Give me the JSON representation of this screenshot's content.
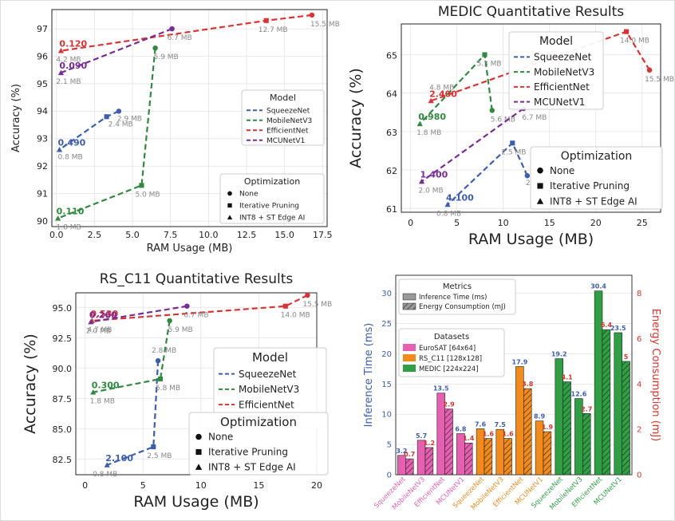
{
  "colors": {
    "SqueezeNet": "#3b5eb5",
    "MobileNetV3": "#2e8b3e",
    "EfficientNet": "#e03131",
    "MCUNetV1": "#7b2a9a",
    "EuroSAT": "#e75fb0",
    "RS_C11": "#f28b1a",
    "MEDIC": "#2ea043",
    "energy_axis": "#d9342b",
    "time_axis": "#3b5eb5"
  },
  "legend_titles": {
    "model": "Model",
    "optimization": "Optimization",
    "metrics": "Metrics",
    "datasets": "Datasets"
  },
  "model_names": [
    "SqueezeNet",
    "MobileNetV3",
    "EfficientNet",
    "MCUNetV1"
  ],
  "optimization_names": [
    "None",
    "Iterative Pruning",
    "INT8 + ST Edge AI"
  ],
  "metric_names": [
    "Inference Time (ms)",
    "Energy Consumption (mJ)"
  ],
  "dataset_names": [
    "EuroSAT [64x64]",
    "RS_C11 [128x128]",
    "MEDIC [224x224]"
  ],
  "chart_data": [
    {
      "type": "scatter",
      "title": "",
      "xlabel": "RAM Usage (MB)",
      "ylabel": "Accuracy (%)",
      "xlim": [
        -0.3,
        17.8
      ],
      "ylim": [
        89.8,
        97.7
      ],
      "xticks": [
        0.0,
        2.5,
        5.0,
        7.5,
        10.0,
        12.5,
        15.0,
        17.5
      ],
      "yticks": [
        90,
        91,
        92,
        93,
        94,
        95,
        96,
        97
      ],
      "grid": true,
      "legend_position": "right",
      "series": [
        {
          "name": "SqueezeNet",
          "points": [
            {
              "x": 4.1,
              "y": 94.0,
              "opt": "None",
              "size": "2.9 MB"
            },
            {
              "x": 3.3,
              "y": 93.8,
              "opt": "Iterative Pruning",
              "size": "2.4 MB"
            },
            {
              "x": 0.2,
              "y": 92.6,
              "opt": "INT8 + ST Edge AI",
              "size": "0.8 MB"
            }
          ],
          "reduction": "0.490"
        },
        {
          "name": "MobileNetV3",
          "points": [
            {
              "x": 6.5,
              "y": 96.3,
              "opt": "None",
              "size": "5.9 MB"
            },
            {
              "x": 5.6,
              "y": 91.3,
              "opt": "Iterative Pruning",
              "size": "5.0 MB"
            },
            {
              "x": 0.1,
              "y": 90.1,
              "opt": "INT8 + ST Edge AI",
              "size": "1.8 MB"
            }
          ],
          "reduction": "0.110"
        },
        {
          "name": "EfficientNet",
          "points": [
            {
              "x": 16.8,
              "y": 97.5,
              "opt": "None",
              "size": "15.5 MB"
            },
            {
              "x": 13.8,
              "y": 97.3,
              "opt": "Iterative Pruning",
              "size": "12.7 MB"
            },
            {
              "x": 0.3,
              "y": 96.2,
              "opt": "INT8 + ST Edge AI",
              "size": "4.2 MB"
            }
          ],
          "reduction": "0.120"
        },
        {
          "name": "MCUNetV1",
          "points": [
            {
              "x": 7.6,
              "y": 97.0,
              "opt": "None",
              "size": "6.7 MB"
            },
            {
              "x": 0.3,
              "y": 95.4,
              "opt": "INT8 + ST Edge AI",
              "size": "2.1 MB"
            }
          ],
          "reduction": "0.090"
        }
      ]
    },
    {
      "type": "scatter",
      "title": "MEDIC Quantitative Results",
      "xlabel": "RAM Usage (MB)",
      "ylabel": "Accuracy (%)",
      "xlim": [
        -1,
        27
      ],
      "ylim": [
        60.9,
        65.8
      ],
      "xticks": [
        0,
        5,
        10,
        15,
        20,
        25
      ],
      "yticks": [
        61,
        62,
        63,
        64,
        65
      ],
      "grid": true,
      "legend_position": "top-right",
      "series": [
        {
          "name": "SqueezeNet",
          "points": [
            {
              "x": 12.6,
              "y": 61.85,
              "opt": "None",
              "size": "2.8 MB"
            },
            {
              "x": 11.0,
              "y": 62.7,
              "opt": "Iterative Pruning",
              "size": "2.5 MB"
            },
            {
              "x": 4.0,
              "y": 61.1,
              "opt": "INT8 + ST Edge AI",
              "size": "0.8 MB"
            }
          ],
          "reduction": "4.100"
        },
        {
          "name": "MobileNetV3",
          "points": [
            {
              "x": 8.8,
              "y": 63.55,
              "opt": "None",
              "size": "5.6 MB"
            },
            {
              "x": 8.0,
              "y": 65.0,
              "opt": "Iterative Pruning",
              "size": "5.3 MB"
            },
            {
              "x": 1.0,
              "y": 63.2,
              "opt": "INT8 + ST Edge AI",
              "size": "1.8 MB"
            }
          ],
          "reduction": "0.980"
        },
        {
          "name": "EfficientNet",
          "points": [
            {
              "x": 25.8,
              "y": 64.6,
              "opt": "None",
              "size": "15.5 MB"
            },
            {
              "x": 23.3,
              "y": 65.6,
              "opt": "Iterative Pruning",
              "size": "14.0 MB"
            },
            {
              "x": 2.2,
              "y": 63.8,
              "opt": "INT8 + ST Edge AI",
              "size": "4.8 MB"
            }
          ],
          "reduction": "2.400"
        },
        {
          "name": "MCUNetV1",
          "points": [
            {
              "x": 12.2,
              "y": 63.6,
              "opt": "None",
              "size": "6.7 MB"
            },
            {
              "x": 1.2,
              "y": 61.7,
              "opt": "INT8 + ST Edge AI",
              "size": "2.0 MB"
            }
          ],
          "reduction": "1.400"
        }
      ]
    },
    {
      "type": "scatter",
      "title": "RS_C11 Quantitative Results",
      "xlabel": "RAM Usage (MB)",
      "ylabel": "Accuracy (%)",
      "xlim": [
        -0.8,
        20
      ],
      "ylim": [
        81.2,
        96.2
      ],
      "xticks": [
        0,
        5,
        10,
        15,
        20
      ],
      "yticks": [
        82.5,
        85.0,
        87.5,
        90.0,
        92.5,
        95.0
      ],
      "grid": true,
      "legend_position": "right",
      "series": [
        {
          "name": "SqueezeNet",
          "points": [
            {
              "x": 6.3,
              "y": 90.6,
              "opt": "None",
              "size": "2.8 MB"
            },
            {
              "x": 5.9,
              "y": 83.5,
              "opt": "Iterative Pruning",
              "size": "2.5 MB"
            },
            {
              "x": 1.9,
              "y": 82.0,
              "opt": "INT8 + ST Edge AI",
              "size": "0.8 MB"
            }
          ],
          "reduction": "2.100"
        },
        {
          "name": "MobileNetV3",
          "points": [
            {
              "x": 7.3,
              "y": 93.9,
              "opt": "None",
              "size": "5.9 MB"
            },
            {
              "x": 6.5,
              "y": 89.1,
              "opt": "Iterative Pruning",
              "size": "5.8 MB"
            },
            {
              "x": 0.7,
              "y": 88.0,
              "opt": "INT8 + ST Edge AI",
              "size": "1.8 MB"
            }
          ],
          "reduction": "0.300"
        },
        {
          "name": "EfficientNet",
          "points": [
            {
              "x": 19.2,
              "y": 96.0,
              "opt": "None",
              "size": "15.5 MB"
            },
            {
              "x": 17.3,
              "y": 95.1,
              "opt": "Iterative Pruning",
              "size": "14.0 MB"
            },
            {
              "x": 0.6,
              "y": 93.9,
              "opt": "INT8 + ST Edge AI",
              "size": "4.7 MB"
            }
          ],
          "reduction": "0.530"
        },
        {
          "name": "MCUNetV1",
          "points": [
            {
              "x": 8.8,
              "y": 95.1,
              "opt": "None",
              "size": "6.7 MB"
            },
            {
              "x": 0.5,
              "y": 93.8,
              "opt": "INT8 + ST Edge AI",
              "size": "2.0 MB"
            }
          ],
          "reduction": "0.260"
        }
      ]
    },
    {
      "type": "bar",
      "title": "",
      "ylabel": "Inference Time (ms)",
      "y2label": "Energy Consumption (mJ)",
      "ylim": [
        0,
        33
      ],
      "y2lim": [
        0,
        8.8
      ],
      "yticks": [
        0,
        5,
        10,
        15,
        20,
        25,
        30
      ],
      "y2ticks": [
        0,
        2,
        4,
        6,
        8
      ],
      "grid": true,
      "categories": [
        "SqueezeNet",
        "MobileNetV3",
        "EfficientNet",
        "MCUNetV1",
        "SqueezeNet",
        "MobileNetV3",
        "EfficientNet",
        "MCUNetV1",
        "SqueezeNet",
        "MobileNetV3",
        "EfficientNet",
        "MCUNetV1"
      ],
      "category_dataset": [
        "EuroSAT",
        "EuroSAT",
        "EuroSAT",
        "EuroSAT",
        "RS_C11",
        "RS_C11",
        "RS_C11",
        "RS_C11",
        "MEDIC",
        "MEDIC",
        "MEDIC",
        "MEDIC"
      ],
      "series": [
        {
          "name": "Inference Time (ms)",
          "axis": "left",
          "values": [
            3.2,
            5.7,
            13.5,
            6.8,
            7.6,
            7.5,
            17.9,
            8.9,
            19.2,
            12.6,
            30.4,
            23.5
          ]
        },
        {
          "name": "Energy Consumption (mJ)",
          "axis": "right",
          "values": [
            0.7,
            1.2,
            2.9,
            1.4,
            1.6,
            1.6,
            3.8,
            1.9,
            4.1,
            2.7,
            6.4,
            5.0
          ]
        }
      ]
    }
  ]
}
